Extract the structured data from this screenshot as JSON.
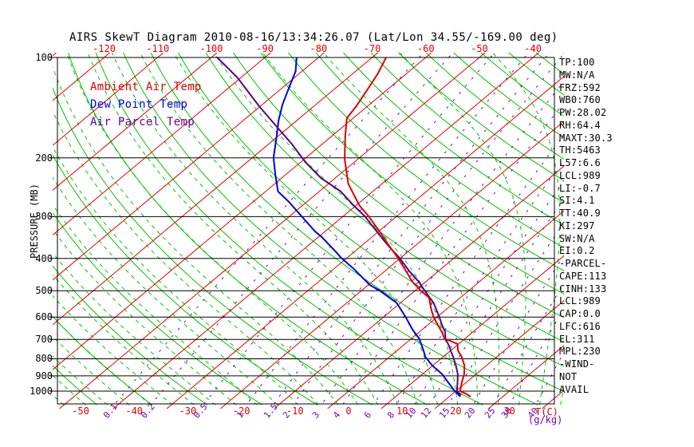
{
  "title": "AIRS SkewT Diagram 2010-08-16/13:34:26.07 (Lat/Lon 34.55/-169.00 deg)",
  "legend": {
    "ambient": "Ambient Air Temp",
    "dew": "Dew Point Temp",
    "parcel": "Air Parcel Temp"
  },
  "axes": {
    "pressure_axis_title": "PRESSURE (MB)",
    "temp_unit_label": "T(C)",
    "mixing_unit_label": "(g/kg)",
    "pressure_ticks_mb": [
      100,
      200,
      300,
      400,
      500,
      600,
      700,
      800,
      900,
      1000
    ],
    "top_temp_ticks_c": [
      -120,
      -110,
      -100,
      -90,
      -80,
      -70,
      -60,
      -50,
      -40
    ],
    "bottom_temp_ticks_c": [
      -50,
      -40,
      -30,
      -20,
      -10,
      0,
      10,
      20,
      30
    ],
    "mixing_ratio_ticks_g_kg": [
      0.1,
      0.2,
      0.5,
      1,
      1.5,
      2,
      3,
      4,
      6,
      8,
      10,
      12,
      15,
      20,
      25,
      30,
      40
    ]
  },
  "stats_panel": {
    "lines": [
      "TP:100",
      "MW:N/A",
      "FRZ:592",
      "WB0:760",
      "PW:28.02",
      "RH:64.4",
      "MAXT:30.3",
      "TH:5463",
      "L57:6.6",
      "LCL:989",
      "LI:-0.7",
      "SI:4.1",
      "TT:40.9",
      "KI:297",
      "SW:N/A",
      "EI:0.2",
      "-PARCEL-",
      "CAPE:113",
      "CINH:133",
      "LCL:989",
      "CAP:0.0",
      "LFC:616",
      "EL:311",
      "MPL:230",
      "-WIND-",
      "NOT",
      "AVAIL"
    ]
  },
  "colors": {
    "ambient": "#dd0000",
    "dewpoint": "#0000dd",
    "parcel": "#550088",
    "isotherm": "#e10000",
    "dry_adiabat": "#00c300",
    "moist_adiabat": "#00c800",
    "mixing_ratio": "#7d00b5",
    "pressure_line": "#000000",
    "frame": "#000000",
    "hatch": "#8800aa"
  },
  "chart_data": {
    "type": "line",
    "diagram": "skew-t-log-p",
    "pressure_axis_mb": {
      "top": 100,
      "bottom": 1000,
      "scale": "log"
    },
    "temperature_axis_c": {
      "tick_step": 10,
      "bottom_labels_from": -50,
      "bottom_labels_to": 30,
      "top_labels_from": -120,
      "top_labels_to": -40
    },
    "grid": {
      "isotherms_c": {
        "min": -160,
        "max": 40,
        "step": 10
      },
      "dry_adiabats_theta_c": {
        "min": -100,
        "max": 190,
        "step": 10
      },
      "moist_adiabats_thetaw_c": {
        "min": -60,
        "max": 40,
        "step": 4
      },
      "mixing_ratio_g_kg": [
        0.1,
        0.2,
        0.5,
        1,
        1.5,
        2,
        3,
        4,
        6,
        8,
        10,
        12,
        15,
        20,
        25,
        30,
        40
      ],
      "pressure_lines_mb": [
        100,
        200,
        300,
        400,
        500,
        600,
        700,
        800,
        900,
        1000
      ]
    },
    "series": [
      {
        "name": "Ambient Air Temp",
        "color_key": "ambient",
        "points_p_t": [
          [
            100,
            -67.4
          ],
          [
            112,
            -65.3
          ],
          [
            125,
            -63.7
          ],
          [
            140,
            -62.1
          ],
          [
            152,
            -61.2
          ],
          [
            172,
            -57.5
          ],
          [
            202,
            -52.4
          ],
          [
            239,
            -46.3
          ],
          [
            277,
            -39.5
          ],
          [
            299,
            -35.3
          ],
          [
            337,
            -29.1
          ],
          [
            365,
            -25.1
          ],
          [
            398,
            -20.6
          ],
          [
            430,
            -16.8
          ],
          [
            470,
            -12.5
          ],
          [
            502,
            -8.7
          ],
          [
            524,
            -5.9
          ],
          [
            566,
            -3.0
          ],
          [
            598,
            -0.8
          ],
          [
            631,
            1.7
          ],
          [
            666,
            4.3
          ],
          [
            695,
            6.1
          ],
          [
            722,
            9.8
          ],
          [
            755,
            11.3
          ],
          [
            790,
            13.5
          ],
          [
            838,
            15.9
          ],
          [
            890,
            17.8
          ],
          [
            939,
            19.1
          ],
          [
            1000,
            20.8
          ],
          [
            1016,
            22.3
          ],
          [
            1039,
            24.0
          ]
        ]
      },
      {
        "name": "Dew Point Temp",
        "color_key": "dewpoint",
        "points_p_t": [
          [
            100,
            -84.1
          ],
          [
            110,
            -81.2
          ],
          [
            123,
            -78.8
          ],
          [
            138,
            -76.3
          ],
          [
            154,
            -73.5
          ],
          [
            172,
            -70.3
          ],
          [
            200,
            -66.0
          ],
          [
            226,
            -61.7
          ],
          [
            252,
            -57.7
          ],
          [
            271,
            -53.3
          ],
          [
            299,
            -47.8
          ],
          [
            332,
            -41.9
          ],
          [
            345,
            -39.4
          ],
          [
            386,
            -32.9
          ],
          [
            398,
            -31.2
          ],
          [
            430,
            -26.3
          ],
          [
            480,
            -19.8
          ],
          [
            502,
            -16.3
          ],
          [
            544,
            -10.7
          ],
          [
            598,
            -6.0
          ],
          [
            654,
            -1.8
          ],
          [
            695,
            1.4
          ],
          [
            755,
            4.9
          ],
          [
            790,
            6.7
          ],
          [
            838,
            9.9
          ],
          [
            890,
            13.7
          ],
          [
            939,
            16.5
          ],
          [
            1000,
            19.8
          ],
          [
            1039,
            22.1
          ]
        ]
      },
      {
        "name": "Air Parcel Temp",
        "color_key": "parcel",
        "points_p_t": [
          [
            100,
            -98.9
          ],
          [
            115,
            -90.6
          ],
          [
            140,
            -80.2
          ],
          [
            162,
            -72.1
          ],
          [
            181,
            -65.9
          ],
          [
            206,
            -59.1
          ],
          [
            230,
            -52.6
          ],
          [
            252,
            -46.0
          ],
          [
            277,
            -40.6
          ],
          [
            299,
            -36.0
          ],
          [
            327,
            -31.2
          ],
          [
            351,
            -27.4
          ],
          [
            370,
            -24.5
          ],
          [
            398,
            -20.3
          ],
          [
            437,
            -15.4
          ],
          [
            470,
            -11.3
          ],
          [
            502,
            -8.0
          ],
          [
            544,
            -3.8
          ],
          [
            598,
            0.3
          ],
          [
            631,
            2.5
          ],
          [
            666,
            4.9
          ],
          [
            695,
            6.3
          ],
          [
            726,
            8.3
          ],
          [
            763,
            10.4
          ],
          [
            790,
            11.9
          ],
          [
            838,
            14.3
          ],
          [
            890,
            16.6
          ],
          [
            939,
            18.3
          ],
          [
            1000,
            20.2
          ],
          [
            1028,
            21.9
          ]
        ]
      }
    ],
    "cape_hatch_pressure_range_mb": [
      350,
      560
    ]
  }
}
